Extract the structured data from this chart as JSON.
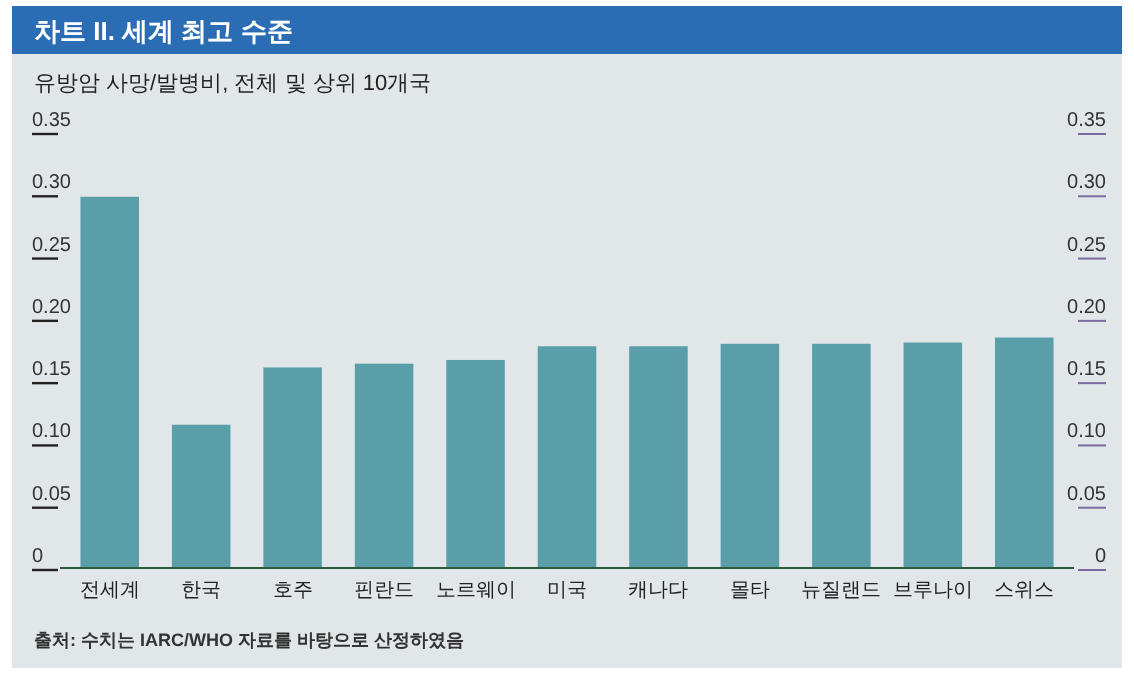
{
  "chart_data": {
    "type": "bar",
    "title": "차트 II. 세계 최고 수준",
    "subtitle": "유방암 사망/발병비, 전체 및 상위 10개국",
    "categories": [
      "전세계",
      "한국",
      "호주",
      "핀란드",
      "노르웨이",
      "미국",
      "캐나다",
      "몰타",
      "뉴질랜드",
      "브루나이",
      "스위스"
    ],
    "values": [
      0.298,
      0.115,
      0.161,
      0.164,
      0.167,
      0.178,
      0.178,
      0.18,
      0.18,
      0.181,
      0.185
    ],
    "color": "#5a9ea9",
    "ylim": [
      0,
      0.35
    ],
    "yticks": [
      0,
      {
        "value": 0.05,
        "label": "0.05"
      },
      {
        "value": 0.1,
        "label": "0.10"
      },
      {
        "value": 0.15,
        "label": "0.15"
      },
      {
        "value": 0.2,
        "label": "0.20"
      },
      {
        "value": 0.25,
        "label": "0.25"
      },
      {
        "value": 0.3,
        "label": "0.30"
      },
      {
        "value": 0.35,
        "label": "0.35"
      }
    ],
    "y2lim": [
      0,
      0.35
    ],
    "y2ticks": [
      0,
      {
        "value": 0.05,
        "label": "0.05"
      },
      {
        "value": 0.1,
        "label": "0.10"
      },
      {
        "value": 0.15,
        "label": "0.15"
      },
      {
        "value": 0.2,
        "label": "0.20"
      },
      {
        "value": 0.25,
        "label": "0.25"
      },
      {
        "value": 0.3,
        "label": "0.30"
      },
      {
        "value": 0.35,
        "label": "0.35"
      }
    ],
    "annotations": [
      "출처: 수치는 IARC/WHO 자료를 바탕으로 산정하였음"
    ]
  }
}
